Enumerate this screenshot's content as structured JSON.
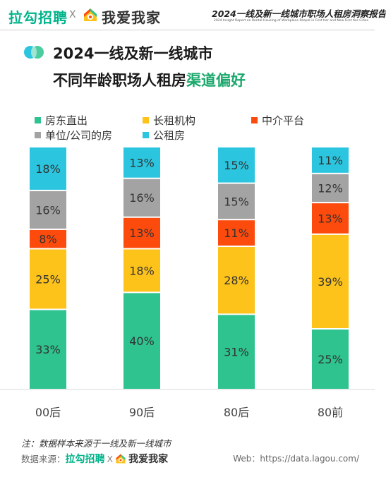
{
  "header": {
    "brand_lagou": "拉勾招聘",
    "brand_x": "X",
    "brand_5i5j": "我爱我家",
    "report_title": "2024一线及新一线城市职场人租房洞察报告",
    "report_subtitle": "2024 Insight Report on Rental Housing of Workplace People in First tier and New First tier Cities"
  },
  "title": {
    "line1": "2024一线及新一线城市",
    "line2_main": "不同年龄职场人租房",
    "line2_highlight": "渠道偏好"
  },
  "colors": {
    "accent_green": "#1aa86c",
    "lagou_green": "#00b38a"
  },
  "chart_data": {
    "type": "bar",
    "stacked": true,
    "percent": true,
    "categories": [
      "00后",
      "90后",
      "80后",
      "80前"
    ],
    "series": [
      {
        "name": "房东直出",
        "color": "#2ec38f",
        "values": [
          33,
          40,
          31,
          25
        ]
      },
      {
        "name": "长租机构",
        "color": "#fdc31b",
        "values": [
          25,
          18,
          28,
          39
        ]
      },
      {
        "name": "中介平台",
        "color": "#fc4b0d",
        "values": [
          8,
          13,
          11,
          13
        ]
      },
      {
        "name": "单位/公司的房",
        "color": "#a3a3a3",
        "values": [
          16,
          16,
          15,
          12
        ]
      },
      {
        "name": "公租房",
        "color": "#2bc5df",
        "values": [
          18,
          13,
          15,
          11
        ]
      }
    ],
    "ylim": [
      0,
      100
    ],
    "legend_position": "top",
    "grid": false
  },
  "footer": {
    "note": "注：数据样本来源于一线及新一线城市",
    "source_label": "数据来源：",
    "source_lagou": "拉勾招聘",
    "source_x": "X",
    "source_5i5j": "我爱我家",
    "web": "Web：https://data.lagou.com/"
  }
}
